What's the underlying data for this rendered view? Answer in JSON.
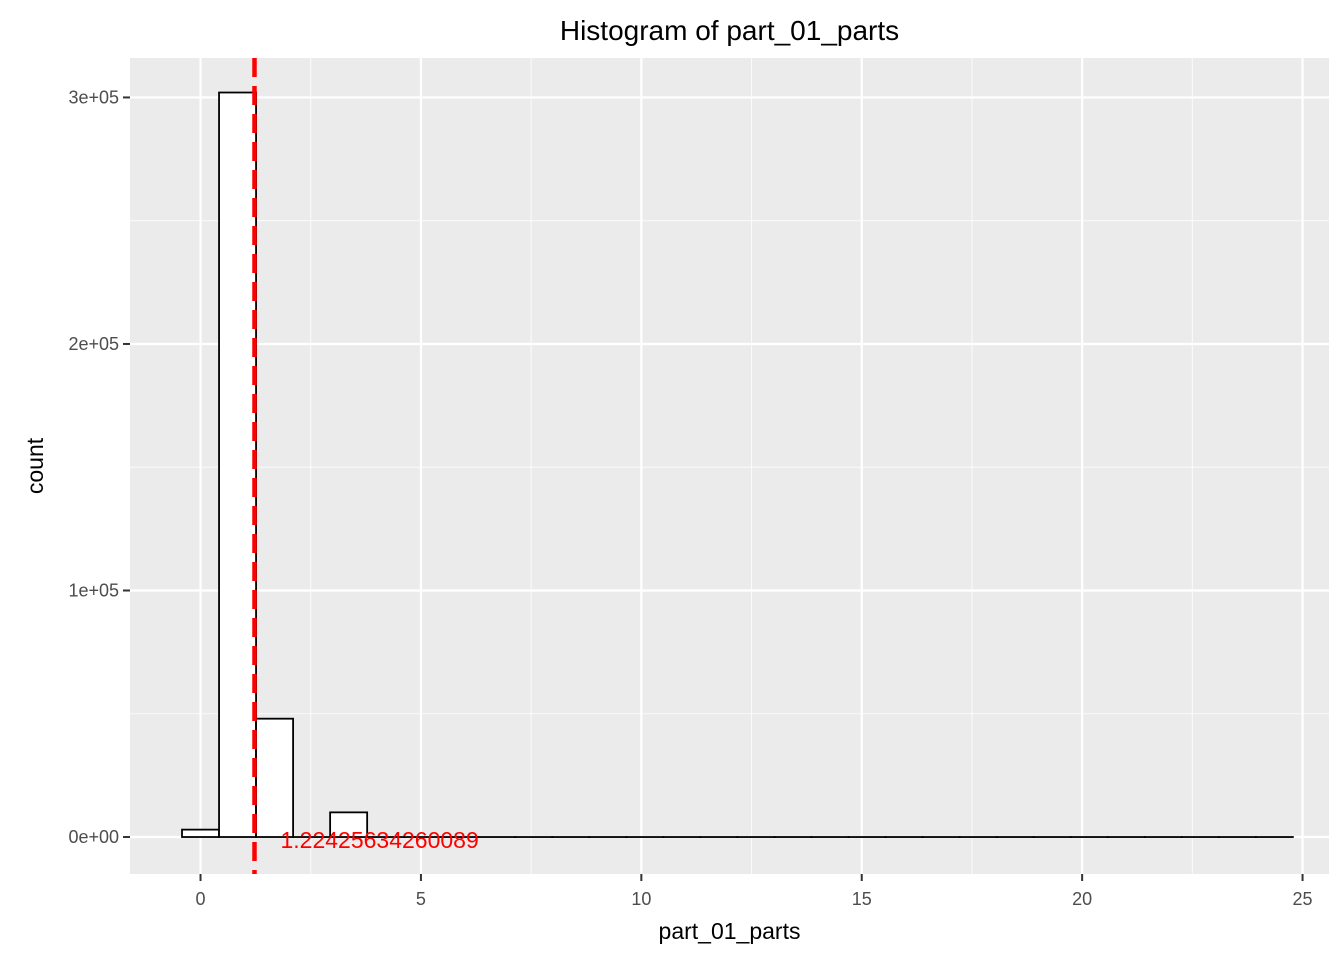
{
  "chart_data": {
    "type": "bar",
    "title": "Histogram of  part_01_parts",
    "xlabel": "part_01_parts",
    "ylabel": "count",
    "xlim": [
      -1.6,
      25.6
    ],
    "ylim": [
      -15000,
      316000
    ],
    "x_ticks": [
      {
        "value": 0,
        "label": "0"
      },
      {
        "value": 5,
        "label": "5"
      },
      {
        "value": 10,
        "label": "10"
      },
      {
        "value": 15,
        "label": "15"
      },
      {
        "value": 20,
        "label": "20"
      },
      {
        "value": 25,
        "label": "25"
      }
    ],
    "y_ticks": [
      {
        "value": 0,
        "label": "0e+00"
      },
      {
        "value": 100000,
        "label": "1e+05"
      },
      {
        "value": 200000,
        "label": "2e+05"
      },
      {
        "value": 300000,
        "label": "3e+05"
      }
    ],
    "grid": true,
    "bins": [
      {
        "x0": -0.42,
        "x1": 0.42,
        "count": 3000
      },
      {
        "x0": 0.42,
        "x1": 1.26,
        "count": 302000
      },
      {
        "x0": 1.26,
        "x1": 2.1,
        "count": 48000
      },
      {
        "x0": 2.1,
        "x1": 2.94,
        "count": 0
      },
      {
        "x0": 2.94,
        "x1": 3.78,
        "count": 10000
      },
      {
        "x0": 3.78,
        "x1": 4.62,
        "count": 0
      },
      {
        "x0": 4.62,
        "x1": 5.46,
        "count": 0
      },
      {
        "x0": 5.46,
        "x1": 6.3,
        "count": 0
      },
      {
        "x0": 6.3,
        "x1": 7.14,
        "count": 0
      },
      {
        "x0": 7.14,
        "x1": 7.98,
        "count": 0
      },
      {
        "x0": 7.98,
        "x1": 8.82,
        "count": 0
      },
      {
        "x0": 8.82,
        "x1": 9.66,
        "count": 0
      },
      {
        "x0": 9.66,
        "x1": 10.5,
        "count": 0
      },
      {
        "x0": 10.5,
        "x1": 11.34,
        "count": 0
      },
      {
        "x0": 11.34,
        "x1": 12.18,
        "count": 0
      },
      {
        "x0": 12.18,
        "x1": 13.02,
        "count": 0
      },
      {
        "x0": 13.02,
        "x1": 13.86,
        "count": 0
      },
      {
        "x0": 13.86,
        "x1": 14.7,
        "count": 0
      },
      {
        "x0": 14.7,
        "x1": 15.54,
        "count": 0
      },
      {
        "x0": 15.54,
        "x1": 16.38,
        "count": 0
      },
      {
        "x0": 16.38,
        "x1": 17.22,
        "count": 0
      },
      {
        "x0": 17.22,
        "x1": 18.06,
        "count": 0
      },
      {
        "x0": 18.06,
        "x1": 18.9,
        "count": 0
      },
      {
        "x0": 18.9,
        "x1": 19.74,
        "count": 0
      },
      {
        "x0": 19.74,
        "x1": 20.58,
        "count": 0
      },
      {
        "x0": 20.58,
        "x1": 21.42,
        "count": 0
      },
      {
        "x0": 21.42,
        "x1": 22.26,
        "count": 0
      },
      {
        "x0": 22.26,
        "x1": 23.1,
        "count": 0
      },
      {
        "x0": 23.1,
        "x1": 23.94,
        "count": 0
      },
      {
        "x0": 23.94,
        "x1": 24.78,
        "count": 0
      }
    ],
    "mean_line": {
      "value": 1.22425634260089,
      "label": "1.22425634260089",
      "color": "#ff0000",
      "style": "dashed"
    },
    "colors": {
      "panel_background": "#ebebeb",
      "grid_major": "#ffffff",
      "bar_fill": "#ffffff",
      "bar_outline": "#000000"
    }
  }
}
